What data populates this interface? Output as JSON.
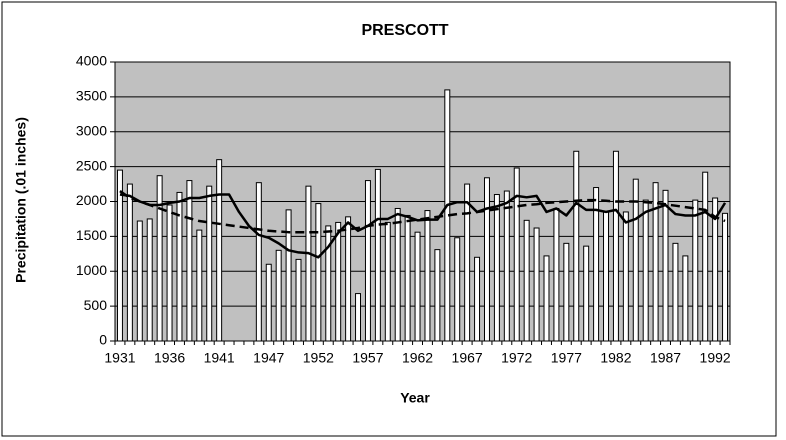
{
  "chart_data": {
    "type": "bar",
    "title": "PRESCOTT",
    "x_label": "Year",
    "y_label": "Precipitation (.01 inches)",
    "categories": [
      "1931",
      null,
      null,
      null,
      null,
      "1936",
      null,
      null,
      null,
      null,
      "1941",
      null,
      null,
      null,
      null,
      "1947",
      null,
      null,
      null,
      null,
      "1952",
      null,
      null,
      null,
      null,
      "1957",
      null,
      null,
      null,
      null,
      "1962",
      null,
      null,
      null,
      null,
      "1967",
      null,
      null,
      null,
      null,
      "1972",
      null,
      null,
      null,
      null,
      "1977",
      null,
      null,
      null,
      null,
      "1982",
      null,
      null,
      null,
      null,
      "1987",
      null,
      null,
      null,
      null,
      "1992",
      null
    ],
    "series": [
      {
        "type": "bar",
        "color": "#ffffff",
        "values": [
          2450,
          2250,
          1720,
          1750,
          2370,
          1950,
          2130,
          2300,
          1590,
          2220,
          2600,
          null,
          null,
          null,
          2270,
          1100,
          1300,
          1880,
          1170,
          2220,
          1970,
          1650,
          1700,
          1780,
          680,
          2300,
          2460,
          1700,
          1900,
          1800,
          1560,
          1870,
          1310,
          3600,
          1480,
          2250,
          1200,
          2340,
          2100,
          2150,
          2480,
          1730,
          1620,
          1220,
          1900,
          1400,
          2720,
          1360,
          2200,
          1850,
          2720,
          1850,
          2320,
          2020,
          2270,
          2160,
          1400,
          1220,
          2020,
          2420,
          2050,
          1830
        ]
      },
      {
        "type": "line",
        "color": "#000000",
        "line_style": "solid",
        "values": [
          2100,
          2080,
          2000,
          1950,
          1950,
          1980,
          2000,
          2050,
          2050,
          2080,
          2100,
          2100,
          1850,
          1650,
          1520,
          1480,
          1400,
          1300,
          1270,
          1260,
          1200,
          1350,
          1550,
          1700,
          1580,
          1650,
          1750,
          1750,
          1820,
          1780,
          1730,
          1740,
          1740,
          1950,
          1990,
          1990,
          1850,
          1900,
          1930,
          1980,
          2080,
          2060,
          2080,
          1850,
          1900,
          1800,
          1980,
          1880,
          1880,
          1850,
          1880,
          1700,
          1750,
          1850,
          1900,
          1950,
          1820,
          1800,
          1800,
          1850,
          1750,
          1980
        ]
      },
      {
        "type": "line",
        "color": "#000000",
        "line_style": "dashed",
        "values": [
          2150,
          2050,
          2000,
          1950,
          1900,
          1850,
          1800,
          1760,
          1720,
          1700,
          1680,
          1660,
          1640,
          1620,
          1600,
          1580,
          1570,
          1560,
          1560,
          1560,
          1560,
          1570,
          1580,
          1600,
          1620,
          1650,
          1670,
          1680,
          1700,
          1720,
          1740,
          1760,
          1780,
          1800,
          1820,
          1830,
          1850,
          1870,
          1890,
          1910,
          1930,
          1950,
          1960,
          1980,
          1990,
          2000,
          2010,
          2020,
          2020,
          2010,
          2000,
          2000,
          2000,
          1990,
          1980,
          1960,
          1940,
          1920,
          1900,
          1880,
          1780,
          1720
        ]
      }
    ],
    "ylim": [
      0,
      4000
    ],
    "yticks": [
      0,
      500,
      1000,
      1500,
      2000,
      2500,
      3000,
      3500,
      4000
    ],
    "grid": true,
    "plot_background": "#c0c0c0"
  }
}
